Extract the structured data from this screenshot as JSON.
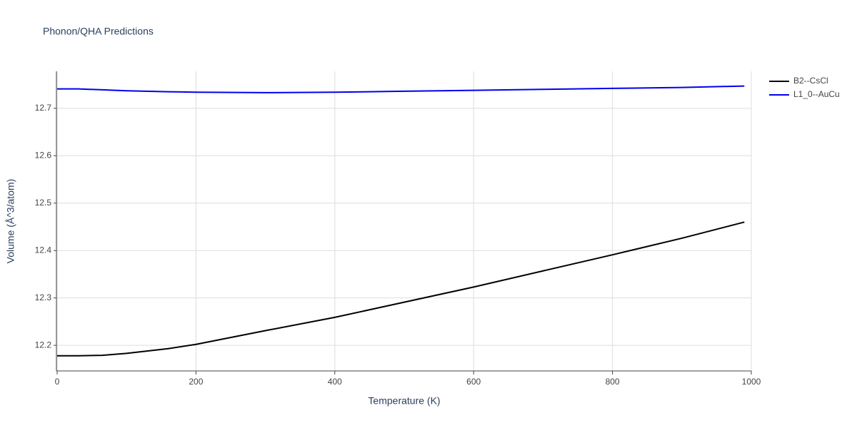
{
  "chart_data": {
    "type": "line",
    "title": "Phonon/QHA Predictions",
    "x_label": "Temperature (K)",
    "y_label": "Volume (Å^3/atom)",
    "x": [
      0,
      30,
      65,
      100,
      160,
      200,
      300,
      400,
      500,
      600,
      700,
      800,
      900,
      990
    ],
    "series": [
      {
        "name": "B2--CsCl",
        "color": "#000000",
        "values": [
          12.178,
          12.178,
          12.179,
          12.183,
          12.193,
          12.202,
          12.231,
          12.259,
          12.291,
          12.323,
          12.357,
          12.391,
          12.426,
          12.46
        ]
      },
      {
        "name": "L1_0--AuCu",
        "color": "#0000ee",
        "values": [
          12.741,
          12.741,
          12.739,
          12.737,
          12.735,
          12.734,
          12.733,
          12.734,
          12.736,
          12.738,
          12.74,
          12.742,
          12.744,
          12.747
        ]
      }
    ],
    "xlim": [
      0,
      1000
    ],
    "xticks": [
      0,
      200,
      400,
      600,
      800,
      1000
    ],
    "ylim": [
      12.146,
      12.778
    ],
    "yticks": [
      12.2,
      12.3,
      12.4,
      12.5,
      12.6,
      12.7
    ],
    "grid": true,
    "legend": "right"
  }
}
